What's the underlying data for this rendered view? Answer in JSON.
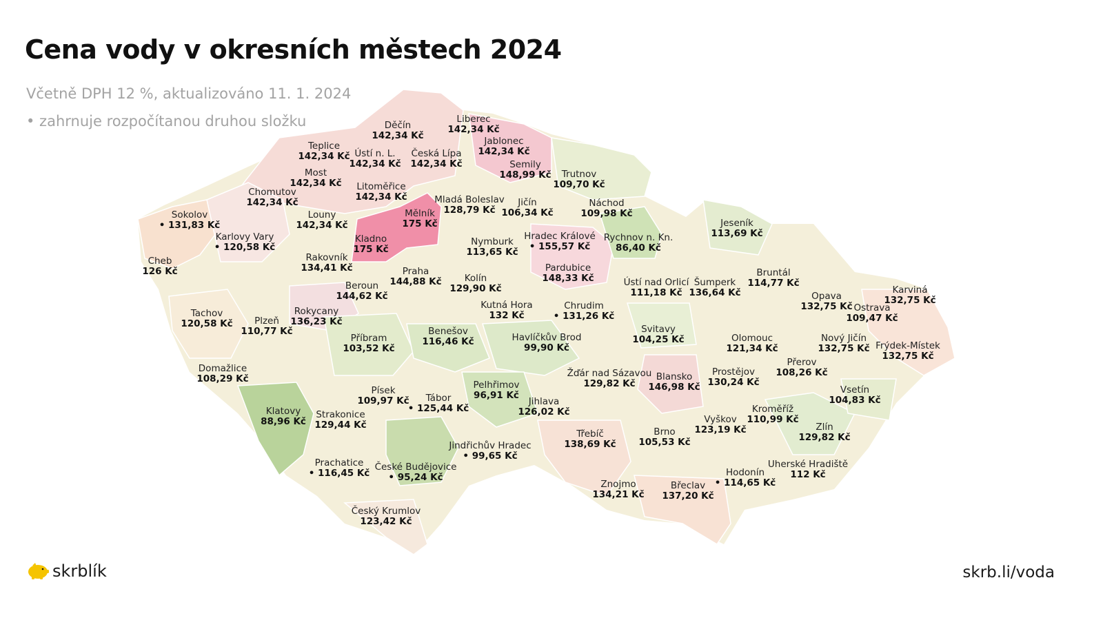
{
  "title": "Cena vody v okresních městech 2024",
  "subtitle": "Včetně DPH 12 %, aktualizováno 11. 1. 2024",
  "note": "• zahrnuje rozpočítanou druhou složku",
  "brand": {
    "name": "skrblík",
    "icon": "piggy-bank-icon",
    "color": "#f5c400"
  },
  "url": "skrb.li/voda",
  "legend_colors": {
    "low": "#8fbf6a",
    "mid": "#f7efd2",
    "high": "#f08fa8"
  },
  "cities": [
    {
      "name": "Cheb",
      "price": "126 Kč",
      "dot": false
    },
    {
      "name": "Sokolov",
      "price": "131,83 Kč",
      "dot": true
    },
    {
      "name": "Karlovy Vary",
      "price": "120,58 Kč",
      "dot": true
    },
    {
      "name": "Chomutov",
      "price": "142,34 Kč",
      "dot": false
    },
    {
      "name": "Most",
      "price": "142,34 Kč",
      "dot": false
    },
    {
      "name": "Teplice",
      "price": "142,34 Kč",
      "dot": false
    },
    {
      "name": "Ústí n. L.",
      "price": "142,34 Kč",
      "dot": false
    },
    {
      "name": "Děčín",
      "price": "142,34 Kč",
      "dot": false
    },
    {
      "name": "Česká Lípa",
      "price": "142,34 Kč",
      "dot": false
    },
    {
      "name": "Liberec",
      "price": "142,34 Kč",
      "dot": false
    },
    {
      "name": "Jablonec",
      "price": "142,34 Kč",
      "dot": false
    },
    {
      "name": "Semily",
      "price": "148,99 Kč",
      "dot": false
    },
    {
      "name": "Trutnov",
      "price": "109,70 Kč",
      "dot": false
    },
    {
      "name": "Litoměřice",
      "price": "142,34 Kč",
      "dot": false
    },
    {
      "name": "Louny",
      "price": "142,34 Kč",
      "dot": false
    },
    {
      "name": "Mělník",
      "price": "175 Kč",
      "dot": false
    },
    {
      "name": "Mladá Boleslav",
      "price": "128,79 Kč",
      "dot": false
    },
    {
      "name": "Jičín",
      "price": "106,34 Kč",
      "dot": false
    },
    {
      "name": "Náchod",
      "price": "109,98 Kč",
      "dot": false
    },
    {
      "name": "Kladno",
      "price": "175 Kč",
      "dot": false
    },
    {
      "name": "Rakovník",
      "price": "134,41 Kč",
      "dot": false
    },
    {
      "name": "Nymburk",
      "price": "113,65 Kč",
      "dot": false
    },
    {
      "name": "Hradec Králové",
      "price": "155,57 Kč",
      "dot": true
    },
    {
      "name": "Rychnov n. Kn.",
      "price": "86,40 Kč",
      "dot": false
    },
    {
      "name": "Jeseník",
      "price": "113,69 Kč",
      "dot": false
    },
    {
      "name": "Praha",
      "price": "144,88 Kč",
      "dot": false
    },
    {
      "name": "Beroun",
      "price": "144,62 Kč",
      "dot": false
    },
    {
      "name": "Kolín",
      "price": "129,90 Kč",
      "dot": false
    },
    {
      "name": "Pardubice",
      "price": "148,33 Kč",
      "dot": false
    },
    {
      "name": "Ústí nad Orlicí",
      "price": "111,18 Kč",
      "dot": false
    },
    {
      "name": "Šumperk",
      "price": "136,64 Kč",
      "dot": false
    },
    {
      "name": "Bruntál",
      "price": "114,77 Kč",
      "dot": false
    },
    {
      "name": "Opava",
      "price": "132,75 Kč",
      "dot": false
    },
    {
      "name": "Karviná",
      "price": "132,75 Kč",
      "dot": false
    },
    {
      "name": "Ostrava",
      "price": "109,47 Kč",
      "dot": false
    },
    {
      "name": "Tachov",
      "price": "120,58 Kč",
      "dot": false
    },
    {
      "name": "Plzeň",
      "price": "110,77 Kč",
      "dot": false
    },
    {
      "name": "Rokycany",
      "price": "136,23 Kč",
      "dot": false
    },
    {
      "name": "Kutná Hora",
      "price": "132 Kč",
      "dot": false
    },
    {
      "name": "Chrudim",
      "price": "131,26 Kč",
      "dot": true
    },
    {
      "name": "Svitavy",
      "price": "104,25 Kč",
      "dot": false
    },
    {
      "name": "Příbram",
      "price": "103,52 Kč",
      "dot": false
    },
    {
      "name": "Benešov",
      "price": "116,46 Kč",
      "dot": false
    },
    {
      "name": "Havlíčkův Brod",
      "price": "99,90 Kč",
      "dot": false
    },
    {
      "name": "Olomouc",
      "price": "121,34 Kč",
      "dot": false
    },
    {
      "name": "Nový Jičín",
      "price": "132,75 Kč",
      "dot": false
    },
    {
      "name": "Frýdek-Místek",
      "price": "132,75 Kč",
      "dot": false
    },
    {
      "name": "Domažlice",
      "price": "108,29 Kč",
      "dot": false
    },
    {
      "name": "Žďár nad Sázavou",
      "price": "129,82 Kč",
      "dot": false
    },
    {
      "name": "Blansko",
      "price": "146,98 Kč",
      "dot": false
    },
    {
      "name": "Prostějov",
      "price": "130,24 Kč",
      "dot": false
    },
    {
      "name": "Přerov",
      "price": "108,26 Kč",
      "dot": false
    },
    {
      "name": "Písek",
      "price": "109,97 Kč",
      "dot": false
    },
    {
      "name": "Pelhřimov",
      "price": "96,91 Kč",
      "dot": false
    },
    {
      "name": "Tábor",
      "price": "125,44 Kč",
      "dot": true
    },
    {
      "name": "Jihlava",
      "price": "126,02 Kč",
      "dot": false
    },
    {
      "name": "Vsetín",
      "price": "104,83 Kč",
      "dot": false
    },
    {
      "name": "Klatovy",
      "price": "88,96 Kč",
      "dot": false
    },
    {
      "name": "Strakonice",
      "price": "129,44 Kč",
      "dot": false
    },
    {
      "name": "Kroměříž",
      "price": "110,99 Kč",
      "dot": false
    },
    {
      "name": "Vyškov",
      "price": "123,19 Kč",
      "dot": false
    },
    {
      "name": "Třebíč",
      "price": "138,69 Kč",
      "dot": false
    },
    {
      "name": "Brno",
      "price": "105,53 Kč",
      "dot": false
    },
    {
      "name": "Zlín",
      "price": "129,82 Kč",
      "dot": false
    },
    {
      "name": "Jindřichův Hradec",
      "price": "99,65 Kč",
      "dot": true
    },
    {
      "name": "Prachatice",
      "price": "116,45 Kč",
      "dot": true
    },
    {
      "name": "České Budějovice",
      "price": "95,24 Kč",
      "dot": true
    },
    {
      "name": "Uherské Hradiště",
      "price": "112 Kč",
      "dot": false
    },
    {
      "name": "Hodonín",
      "price": "114,65 Kč",
      "dot": true
    },
    {
      "name": "Znojmo",
      "price": "134,21 Kč",
      "dot": false
    },
    {
      "name": "Břeclav",
      "price": "137,20 Kč",
      "dot": false
    },
    {
      "name": "Český Krumlov",
      "price": "123,42 Kč",
      "dot": false
    }
  ]
}
